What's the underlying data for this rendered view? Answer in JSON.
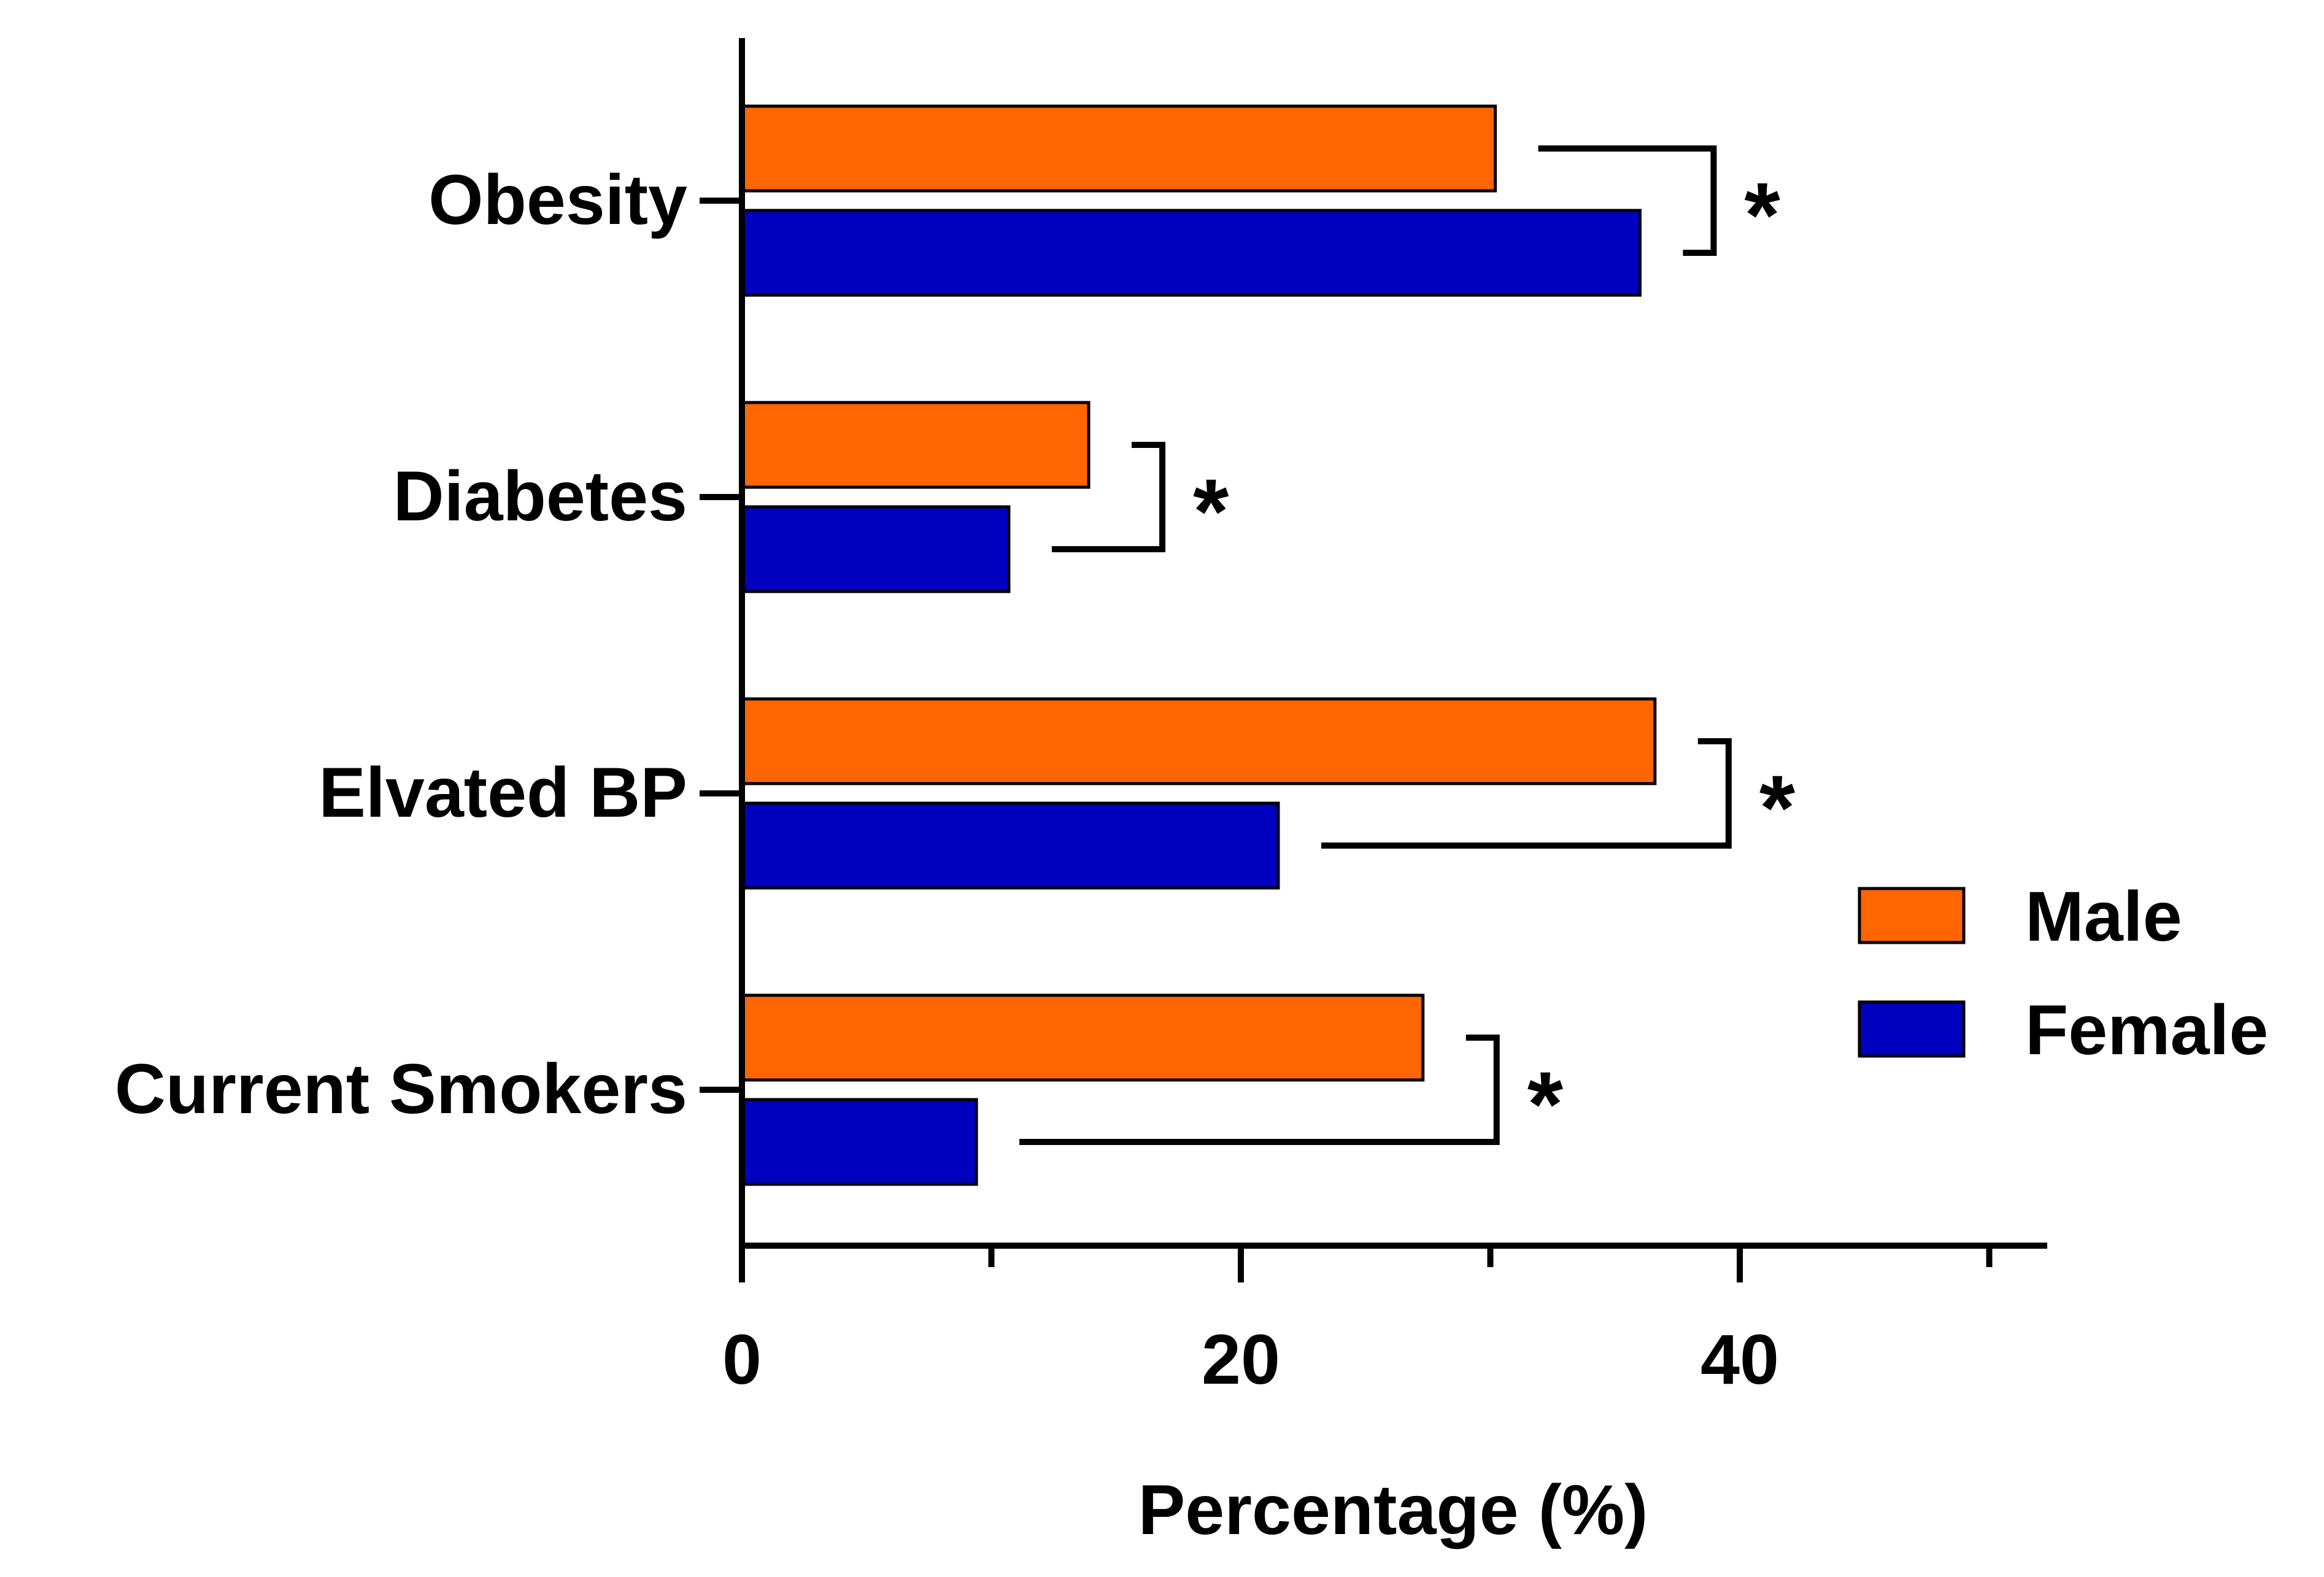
{
  "chart_data": {
    "type": "bar",
    "orientation": "horizontal",
    "categories": [
      "Obesity",
      "Diabetes",
      "Elvated BP",
      "Current Smokers"
    ],
    "series": [
      {
        "name": "Male",
        "color": "#ff6600",
        "values": [
          30.2,
          13.9,
          36.6,
          27.3
        ]
      },
      {
        "name": "Female",
        "color": "#0000c0",
        "values": [
          36.0,
          10.7,
          21.5,
          9.4
        ]
      }
    ],
    "xlabel": "Percentage (%)",
    "ylabel": "",
    "xlim": [
      0,
      52
    ],
    "xticks": [
      0,
      20,
      40
    ],
    "xminor_ticks": [
      10,
      30,
      50
    ],
    "grid": false,
    "legend_position": "right",
    "significance": [
      {
        "category": "Obesity",
        "label": "*"
      },
      {
        "category": "Diabetes",
        "label": "*"
      },
      {
        "category": "Elvated BP",
        "label": "*"
      },
      {
        "category": "Current Smokers",
        "label": "*"
      }
    ]
  }
}
